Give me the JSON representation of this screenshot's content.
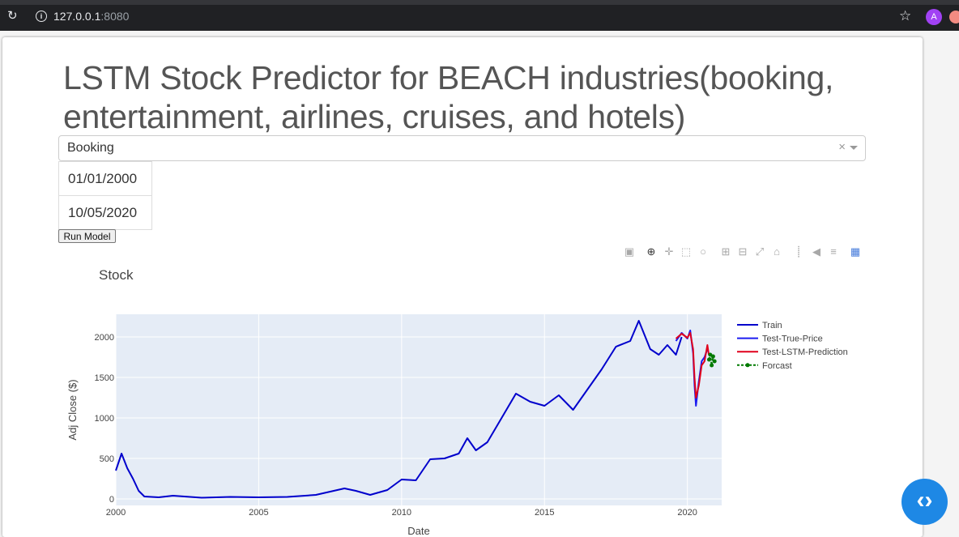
{
  "browser": {
    "url_host": "127.0.0.1",
    "url_port": ":8080",
    "avatar_letter": "A"
  },
  "app": {
    "title": "LSTM Stock Predictor for BEACH industries(booking, entertainment, airlines, cruises, and hotels)",
    "dropdown_value": "Booking",
    "start_date": "01/01/2000",
    "end_date": "10/05/2020",
    "run_button": "Run Model"
  },
  "modebar_icons": [
    "camera-icon",
    "zoom-icon",
    "pan-icon",
    "box-select-icon",
    "lasso-icon",
    "zoom-in-icon",
    "zoom-out-icon",
    "autoscale-icon",
    "reset-axes-icon",
    "spike-lines-icon",
    "hover-closest-icon",
    "hover-compare-icon",
    "plotly-logo-icon"
  ],
  "colors": {
    "train": "#0000cc",
    "test_true": "#1c1cf0",
    "prediction": "#e0001b",
    "forecast": "#007a00",
    "plot_bg": "#e5ecf6"
  },
  "chart_data": {
    "type": "line",
    "title": "Stock",
    "xlabel": "Date",
    "ylabel": "Adj Close ($)",
    "xlim": [
      2000,
      2021.2
    ],
    "ylim": [
      -80,
      2280
    ],
    "xticks": [
      2000,
      2005,
      2010,
      2015,
      2020
    ],
    "yticks": [
      0,
      500,
      1000,
      1500,
      2000
    ],
    "grid": true,
    "legend_position": "right",
    "series": [
      {
        "name": "Train",
        "style": "solid",
        "x": [
          2000,
          2000.2,
          2000.4,
          2000.6,
          2000.8,
          2001,
          2001.5,
          2002,
          2003,
          2004,
          2005,
          2006,
          2007,
          2008,
          2008.4,
          2008.9,
          2009.5,
          2010,
          2010.5,
          2011,
          2011.5,
          2012,
          2012.3,
          2012.6,
          2013,
          2013.5,
          2014,
          2014.5,
          2015,
          2015.5,
          2016,
          2016.5,
          2017,
          2017.5,
          2018,
          2018.3,
          2018.7,
          2019,
          2019.3,
          2019.6,
          2019.8
        ],
        "y": [
          350,
          560,
          380,
          250,
          100,
          30,
          20,
          40,
          15,
          25,
          20,
          25,
          50,
          130,
          100,
          50,
          110,
          240,
          230,
          490,
          500,
          560,
          750,
          600,
          700,
          1000,
          1300,
          1200,
          1150,
          1280,
          1100,
          1350,
          1600,
          1880,
          1950,
          2200,
          1850,
          1780,
          1900,
          1780,
          2000
        ]
      },
      {
        "name": "Test-True-Price",
        "style": "solid",
        "x": [
          2019.6,
          2019.8,
          2020,
          2020.1,
          2020.2,
          2020.25,
          2020.3,
          2020.4,
          2020.5,
          2020.6,
          2020.7
        ],
        "y": [
          1950,
          2050,
          1980,
          2080,
          1800,
          1400,
          1150,
          1450,
          1700,
          1750,
          1850
        ]
      },
      {
        "name": "Test-LSTM-Prediction",
        "style": "solid",
        "x": [
          2019.6,
          2019.8,
          2020,
          2020.1,
          2020.2,
          2020.25,
          2020.3,
          2020.4,
          2020.5,
          2020.6,
          2020.7,
          2020.75
        ],
        "y": [
          1980,
          2040,
          1990,
          2050,
          1850,
          1500,
          1250,
          1400,
          1650,
          1700,
          1900,
          1780
        ]
      },
      {
        "name": "Forcast",
        "style": "dashed-markers",
        "x": [
          2020.76,
          2020.8,
          2020.85,
          2020.9,
          2020.95
        ],
        "y": [
          1720,
          1780,
          1650,
          1760,
          1700
        ]
      }
    ]
  }
}
